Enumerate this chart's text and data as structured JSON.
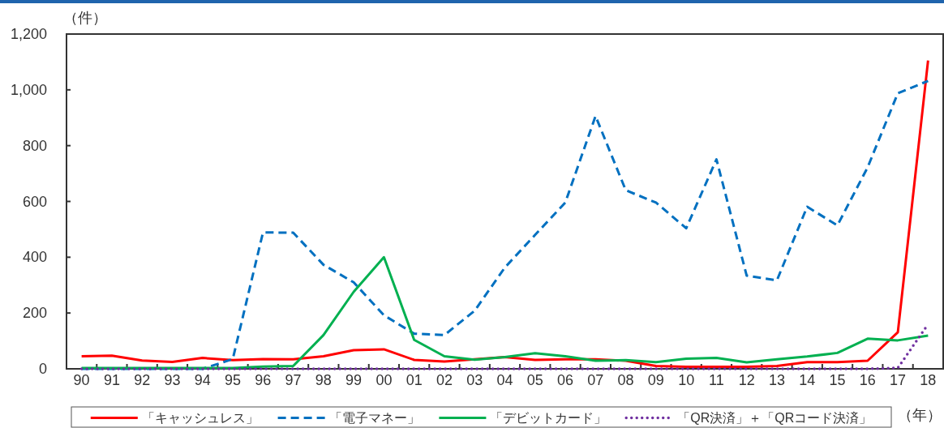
{
  "chart_data": {
    "type": "line",
    "xlabel": "（年）",
    "ylabel": "（件）",
    "categories": [
      "90",
      "91",
      "92",
      "93",
      "94",
      "95",
      "96",
      "97",
      "98",
      "99",
      "00",
      "01",
      "02",
      "03",
      "04",
      "05",
      "06",
      "07",
      "08",
      "09",
      "10",
      "11",
      "12",
      "13",
      "14",
      "15",
      "16",
      "17",
      "18"
    ],
    "ylim": [
      0,
      1200
    ],
    "yticks": [
      0,
      200,
      400,
      600,
      800,
      {
        "value": 1000,
        "label": "1,000"
      },
      {
        "value": 1200,
        "label": "1,200"
      }
    ],
    "legend": "bottom",
    "series": [
      {
        "name": "「キャッシュレス」",
        "color": "#ff0000",
        "line_style": "solid",
        "values": [
          45,
          47,
          30,
          25,
          39,
          31,
          35,
          34,
          45,
          67,
          70,
          32,
          26,
          34,
          42,
          32,
          34,
          34,
          29,
          10,
          7,
          7,
          7,
          10,
          24,
          24,
          29,
          131,
          1105
        ]
      },
      {
        "name": "「電子マネー」",
        "color": "#0070c0",
        "line_style": "dashed",
        "values": [
          0,
          0,
          0,
          0,
          0,
          35,
          489,
          488,
          373,
          310,
          192,
          126,
          121,
          208,
          363,
          480,
          596,
          906,
          640,
          596,
          504,
          751,
          334,
          317,
          581,
          514,
          722,
          988,
          1032
        ]
      },
      {
        "name": "「デビットカード」",
        "color": "#00b050",
        "line_style": "solid",
        "values": [
          3,
          3,
          3,
          3,
          3,
          3,
          8,
          10,
          121,
          276,
          400,
          104,
          45,
          33,
          42,
          56,
          45,
          29,
          31,
          24,
          36,
          39,
          23,
          34,
          44,
          57,
          108,
          102,
          119
        ]
      },
      {
        "name": "「QR決済」＋「QRコード決済」",
        "color": "#7030a0",
        "line_style": "dotted",
        "values": [
          0,
          0,
          0,
          0,
          0,
          0,
          0,
          0,
          0,
          0,
          0,
          0,
          0,
          0,
          0,
          0,
          0,
          0,
          0,
          0,
          0,
          0,
          0,
          0,
          0,
          0,
          0,
          3,
          160
        ]
      }
    ]
  }
}
